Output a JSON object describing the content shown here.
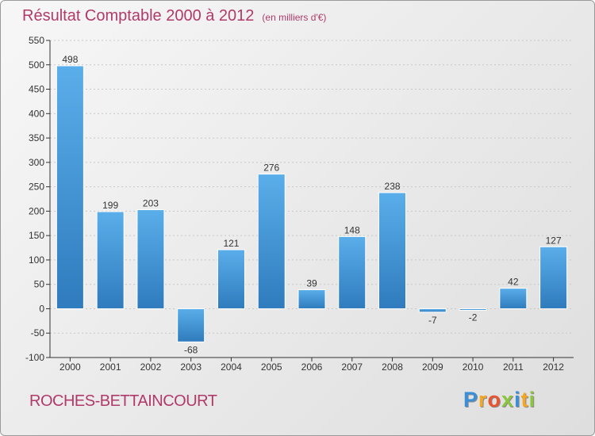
{
  "header": {
    "title": "Résultat Comptable 2000 à 2012",
    "unit": "(en milliers d'€)"
  },
  "footer": {
    "location": "ROCHES-BETTAINCOURT",
    "logo": {
      "letters": [
        "P",
        "r",
        "o",
        "x",
        "i",
        "t",
        "i"
      ],
      "colors": [
        "#3a8fd8",
        "#f5a623",
        "#e8542e",
        "#8cc63f",
        "#3a8fd8",
        "#f5a623",
        "#8cc63f"
      ]
    }
  },
  "colors": {
    "bar_top": "#5aaeea",
    "bar_bottom": "#2f7bbd",
    "axis": "#333333",
    "grid": "#c8c8c8"
  },
  "chart_data": {
    "type": "bar",
    "title": "Résultat Comptable 2000 à 2012",
    "subtitle": "(en milliers d'€)",
    "categories": [
      "2000",
      "2001",
      "2002",
      "2003",
      "2004",
      "2005",
      "2006",
      "2007",
      "2008",
      "2009",
      "2010",
      "2011",
      "2012"
    ],
    "values": [
      498,
      199,
      203,
      -68,
      121,
      276,
      39,
      148,
      238,
      -7,
      -2,
      42,
      127
    ],
    "value_labels": [
      "498",
      "199",
      "203",
      "-68",
      "121",
      "276",
      "39",
      "148",
      "238",
      "-7",
      "-2",
      "42",
      "127"
    ],
    "yticks": [
      -100,
      -50,
      0,
      50,
      100,
      150,
      200,
      250,
      300,
      350,
      400,
      450,
      500,
      550
    ],
    "ytick_labels": [
      "-100",
      "-50",
      "0",
      "50",
      "100",
      "150",
      "200",
      "250",
      "300",
      "350",
      "400",
      "450",
      "500",
      "550"
    ],
    "ylim": [
      -100,
      550
    ],
    "xlabel": "",
    "ylabel": "",
    "grid": true
  }
}
